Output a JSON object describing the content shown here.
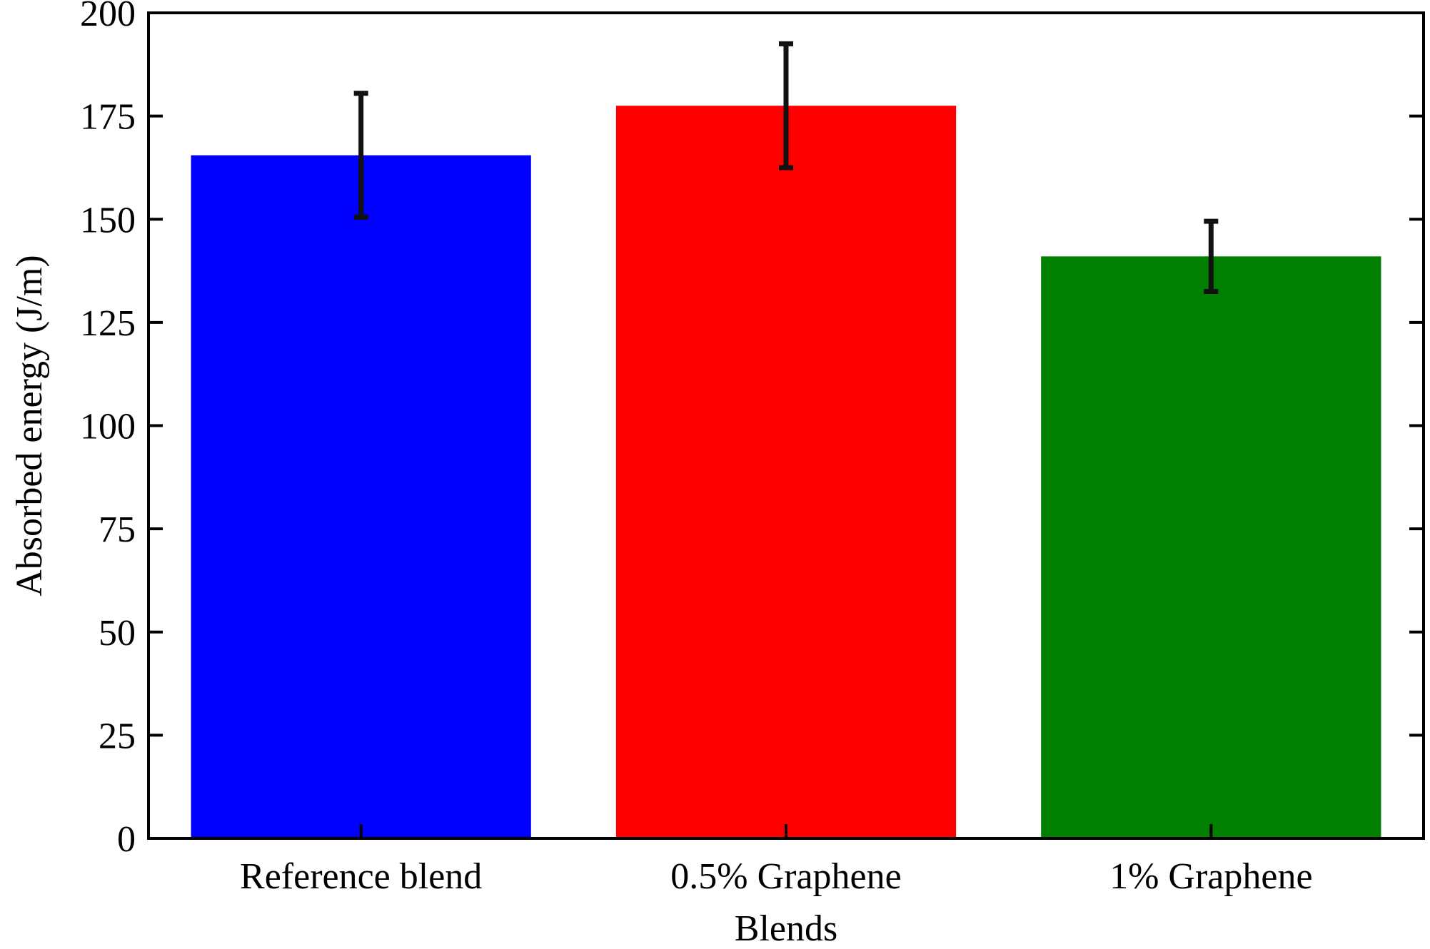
{
  "chart_data": {
    "type": "bar",
    "title": "",
    "xlabel": "Blends",
    "ylabel": "Absorbed energy (J/m)",
    "categories": [
      "Reference blend",
      "0.5% Graphene",
      "1% Graphene"
    ],
    "series": [
      {
        "values": [
          165.5,
          177.5,
          141
        ],
        "errors": [
          15,
          15,
          8.5
        ],
        "colors": [
          "#0000ff",
          "#ff0000",
          "#007f00"
        ]
      }
    ],
    "ylim": [
      0,
      200
    ],
    "yticks": [
      0,
      25,
      50,
      75,
      100,
      125,
      150,
      175,
      200
    ],
    "ytick_labels": [
      "0",
      "25",
      "50",
      "75",
      "100",
      "125",
      "150",
      "175",
      "200"
    ],
    "grid": false,
    "legend": "none"
  }
}
